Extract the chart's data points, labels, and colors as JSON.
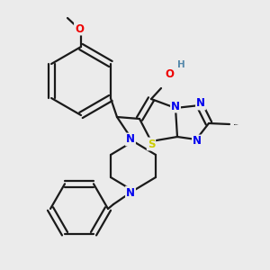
{
  "background_color": "#ebebeb",
  "bond_color": "#1a1a1a",
  "atom_colors": {
    "N": "#0000ee",
    "O": "#ee0000",
    "S": "#cccc00",
    "H": "#5588aa",
    "C": "#1a1a1a"
  },
  "bond_lw": 1.6,
  "font_size_atom": 8.5
}
